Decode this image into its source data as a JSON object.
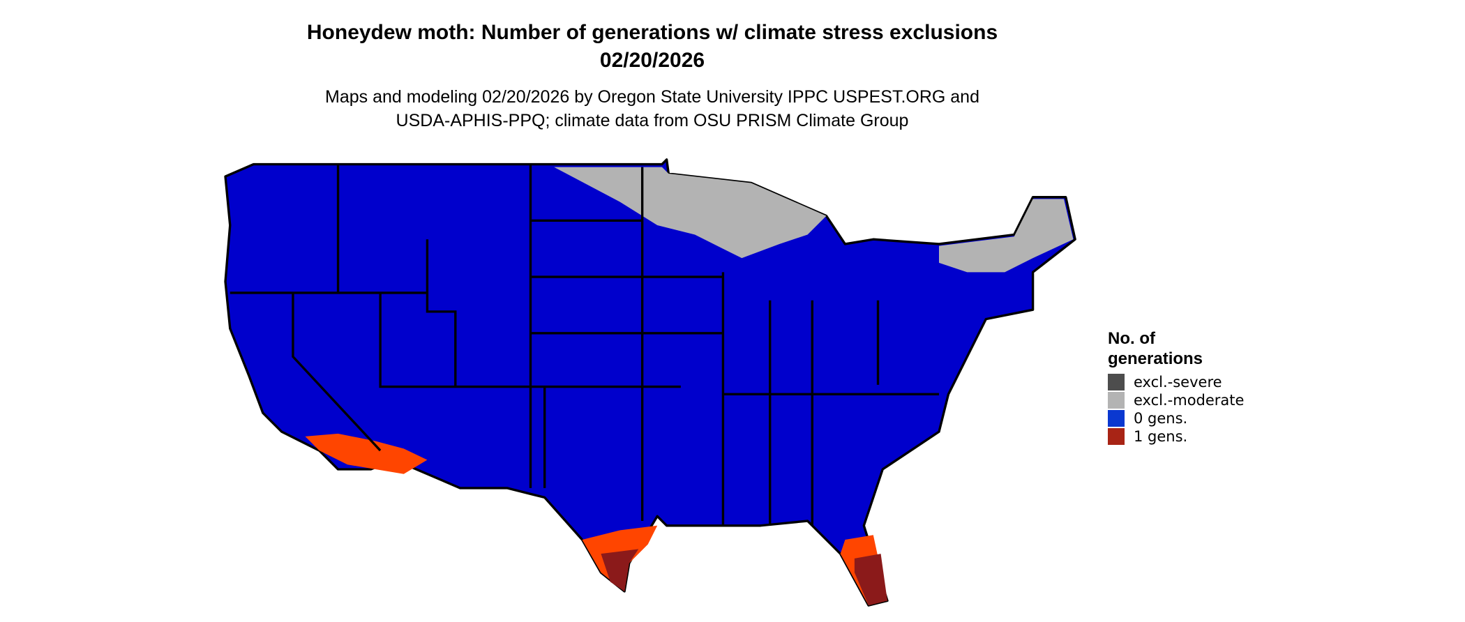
{
  "title": [
    "Honeydew moth: Number of generations w/ climate stress exclusions",
    "02/20/2026"
  ],
  "subtitle": [
    "Maps and modeling 02/20/2026 by Oregon State University IPPC USPEST.ORG and",
    "USDA-APHIS-PPQ; climate data from OSU PRISM Climate Group"
  ],
  "legend": {
    "title": [
      "No. of",
      "generations"
    ],
    "items": [
      {
        "label": "excl.-severe",
        "color": "#4d4d4d"
      },
      {
        "label": "excl.-moderate",
        "color": "#b3b3b3"
      },
      {
        "label": "0 gens.",
        "color": "#0a38d0"
      },
      {
        "label": "1 gens.",
        "color": "#a82415"
      }
    ]
  }
}
